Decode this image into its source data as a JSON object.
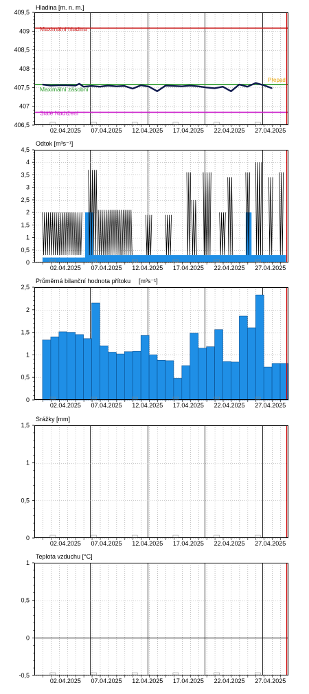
{
  "colors": {
    "frame": "#000000",
    "grid_dot": "#9a9a9a",
    "grid_week": "#000000",
    "now_line": "#d00000",
    "level_line": "#101a4e",
    "flow_fill": "#1f8fe6",
    "flow_line": "#000000",
    "inflow_fill": "#1f8fe6",
    "max_level": "#cc2222",
    "max_storage": "#2a9a2a",
    "perm_storage": "#cc22cc",
    "spill": "#e8a000"
  },
  "x_axis": {
    "tick_labels": [
      "02.04.2025",
      "07.04.2025",
      "12.04.2025",
      "17.04.2025",
      "22.04.2025",
      "27.04.2025"
    ]
  },
  "chart_data": [
    {
      "type": "line",
      "title": "Hladina [m. n. m.]",
      "ylim": [
        406.5,
        409.5
      ],
      "yticks": [
        "409,5",
        "409",
        "408,5",
        "408",
        "407,5",
        "407",
        "406,5"
      ],
      "ytick_values": [
        409.5,
        409,
        408.5,
        408,
        407.5,
        407,
        406.5
      ],
      "x_days": [
        1,
        2,
        3,
        4,
        5,
        5.5,
        6,
        7,
        8,
        9,
        10,
        11,
        12,
        13,
        14,
        15,
        16,
        17,
        18,
        19,
        20,
        21,
        22,
        23,
        24,
        25,
        26,
        27,
        28,
        29
      ],
      "values": [
        407.58,
        407.55,
        407.56,
        407.56,
        407.55,
        407.6,
        407.52,
        407.54,
        407.52,
        407.55,
        407.53,
        407.54,
        407.47,
        407.56,
        407.52,
        407.4,
        407.55,
        407.54,
        407.53,
        407.55,
        407.53,
        407.5,
        407.48,
        407.52,
        407.4,
        407.58,
        407.52,
        407.62,
        407.56,
        407.48
      ],
      "reference_lines": [
        {
          "name": "Maximální hladina",
          "value": 409.08,
          "color_key": "max_level"
        },
        {
          "name": "Maximální zásobní",
          "value": 407.58,
          "color_key": "max_storage"
        },
        {
          "name": "Stálé Nadržení",
          "value": 406.84,
          "color_key": "perm_storage"
        }
      ],
      "spill_label": "Přepad"
    },
    {
      "type": "area",
      "title": "Odtok [m³s⁻¹]",
      "ylim": [
        0,
        4.5
      ],
      "yticks": [
        "4,5",
        "4",
        "3,5",
        "3",
        "2,5",
        "2",
        "1,5",
        "1",
        "0,5",
        "0"
      ],
      "ytick_values": [
        4.5,
        4,
        3.5,
        3,
        2.5,
        2,
        1.5,
        1,
        0.5,
        0
      ],
      "base_segments": [
        {
          "from": 1,
          "to": 6.2,
          "value": 0.2
        },
        {
          "from": 6.2,
          "to": 7.2,
          "value": 2.0
        },
        {
          "from": 7.2,
          "to": 18.2,
          "value": 0.3
        },
        {
          "from": 18.2,
          "to": 25.8,
          "value": 0.3
        },
        {
          "from": 25.8,
          "to": 26.5,
          "value": 2.0
        },
        {
          "from": 26.5,
          "to": 30.7,
          "value": 0.3
        }
      ],
      "spike_bands": [
        {
          "from": 1.0,
          "to": 5.9,
          "high": 2.0
        },
        {
          "from": 6.6,
          "to": 7.8,
          "high": 3.7
        },
        {
          "from": 7.8,
          "to": 10.6,
          "high": 2.1
        },
        {
          "from": 10.6,
          "to": 12.0,
          "high": 2.1
        },
        {
          "from": 13.6,
          "to": 14.4,
          "high": 1.9
        },
        {
          "from": 16.0,
          "to": 16.8,
          "high": 1.9
        },
        {
          "from": 18.6,
          "to": 19.2,
          "high": 3.6
        },
        {
          "from": 19.2,
          "to": 19.9,
          "high": 2.5
        },
        {
          "from": 20.6,
          "to": 21.6,
          "high": 3.6
        },
        {
          "from": 22.6,
          "to": 23.4,
          "high": 2.0
        },
        {
          "from": 23.6,
          "to": 24.3,
          "high": 3.4
        },
        {
          "from": 25.8,
          "to": 26.4,
          "high": 3.6
        },
        {
          "from": 27.0,
          "to": 27.8,
          "high": 4.0
        },
        {
          "from": 28.6,
          "to": 29.2,
          "high": 3.4
        },
        {
          "from": 29.9,
          "to": 30.4,
          "high": 3.6
        }
      ]
    },
    {
      "type": "bar",
      "title": "Průměrná bilanční hodnota přítoku",
      "unit": "[m³s⁻¹]",
      "ylim": [
        0,
        2.5
      ],
      "yticks": [
        "2,5",
        "2",
        "1,5",
        "1",
        "0,5",
        "0"
      ],
      "ytick_values": [
        2.5,
        2,
        1.5,
        1,
        0.5,
        0
      ],
      "x_start_days": [
        1,
        2,
        3,
        4,
        5,
        6,
        7,
        8,
        9,
        10,
        11,
        12,
        13,
        14,
        15,
        16,
        17,
        18,
        19,
        20,
        21,
        22,
        23,
        24,
        25,
        26,
        27,
        28,
        29,
        30
      ],
      "values": [
        1.33,
        1.4,
        1.51,
        1.5,
        1.45,
        1.36,
        2.15,
        1.2,
        1.06,
        1.02,
        1.07,
        1.08,
        1.43,
        1.0,
        0.88,
        0.87,
        0.48,
        0.76,
        1.48,
        1.15,
        1.18,
        1.56,
        0.85,
        0.84,
        1.86,
        1.6,
        2.33,
        0.73,
        0.81,
        0.81
      ]
    },
    {
      "type": "bar",
      "title": "Srážky [mm]",
      "ylim": [
        0,
        1.5
      ],
      "yticks": [
        "1,5",
        "1",
        "0,5",
        "0"
      ],
      "ytick_values": [
        1.5,
        1,
        0.5,
        0
      ],
      "values": []
    },
    {
      "type": "line",
      "title": "Teplota vzduchu [°C]",
      "ylim": [
        -0.5,
        1
      ],
      "yticks": [
        "1",
        "0,5",
        "0",
        "-0,5"
      ],
      "ytick_values": [
        1,
        0.5,
        0,
        -0.5
      ],
      "values": []
    }
  ]
}
